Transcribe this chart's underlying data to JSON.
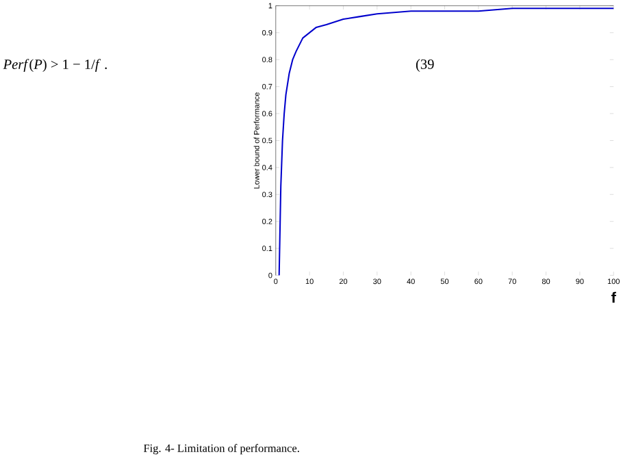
{
  "chart_data": {
    "type": "line",
    "x": [
      1,
      1.5,
      2,
      2.5,
      3,
      4,
      5,
      6,
      8,
      10,
      12,
      15,
      20,
      25,
      30,
      40,
      50,
      60,
      70,
      80,
      90,
      100
    ],
    "series": [
      {
        "color": "#0000cc",
        "values": [
          0,
          0.33,
          0.5,
          0.6,
          0.67,
          0.75,
          0.8,
          0.83,
          0.88,
          0.9,
          0.92,
          0.93,
          0.95,
          0.96,
          0.97,
          0.98,
          0.98,
          0.98,
          0.99,
          0.99,
          0.99,
          0.99
        ]
      }
    ],
    "xlim": [
      0,
      100
    ],
    "ylim": [
      0,
      1
    ],
    "xticks": [
      0,
      10,
      20,
      30,
      40,
      50,
      60,
      70,
      80,
      90,
      100
    ],
    "yticks": [
      0,
      0.1,
      0.2,
      0.3,
      0.4,
      0.5,
      0.6,
      0.7,
      0.8,
      0.9,
      1
    ],
    "xlabel": "f",
    "ylabel": "Lower bound of Performance",
    "annotations": [
      "*Perf*(*P*) > 1 − 1/*f* .",
      "(39",
      "Fig. 4- Limitation of performance."
    ]
  }
}
